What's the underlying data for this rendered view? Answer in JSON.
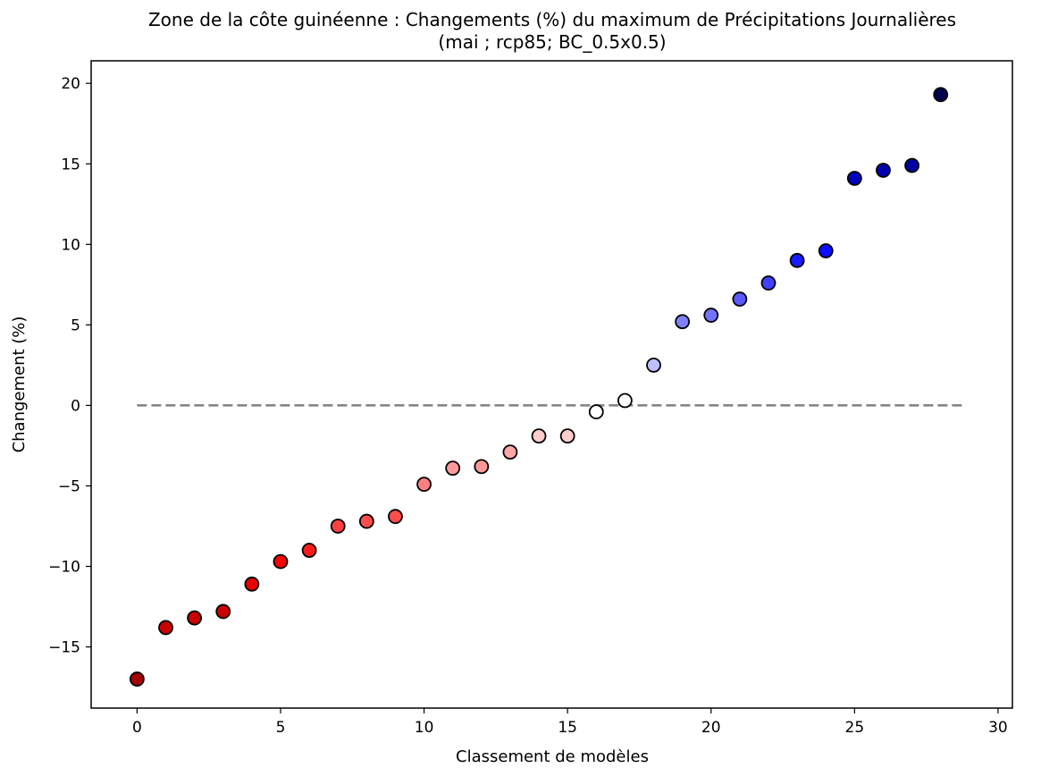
{
  "chart_data": {
    "type": "scatter",
    "title": "Zone de la côte guinéenne : Changements (%) du maximum de Précipitations Journalières",
    "subtitle": "(mai ; rcp85; BC_0.5x0.5)",
    "xlabel": "Classement de modèles",
    "ylabel": "Changement (%)",
    "xlim": [
      -1.6,
      30.5
    ],
    "ylim": [
      -18.8,
      21.4
    ],
    "xticks": [
      0,
      5,
      10,
      15,
      20,
      25,
      30
    ],
    "yticks": [
      -15,
      -10,
      -5,
      0,
      5,
      10,
      15,
      20
    ],
    "xtick_labels": [
      "0",
      "5",
      "10",
      "15",
      "20",
      "25",
      "30"
    ],
    "ytick_labels": [
      "−15",
      "−10",
      "−5",
      "0",
      "5",
      "10",
      "15",
      "20"
    ],
    "grid": false,
    "reference_line": {
      "y": 0,
      "x_range": [
        0,
        28.8
      ],
      "style": "dashed",
      "color": "#808080"
    },
    "points": [
      {
        "x": 0,
        "y": -17.0,
        "color": "#a50000"
      },
      {
        "x": 1,
        "y": -13.8,
        "color": "#cc0000"
      },
      {
        "x": 2,
        "y": -13.2,
        "color": "#cc0000"
      },
      {
        "x": 3,
        "y": -12.8,
        "color": "#cc0000"
      },
      {
        "x": 4,
        "y": -11.1,
        "color": "#e60000"
      },
      {
        "x": 5,
        "y": -9.7,
        "color": "#ff0000"
      },
      {
        "x": 6,
        "y": -9.0,
        "color": "#ff1a1a"
      },
      {
        "x": 7,
        "y": -7.5,
        "color": "#ff4040"
      },
      {
        "x": 8,
        "y": -7.2,
        "color": "#ff4d4d"
      },
      {
        "x": 9,
        "y": -6.9,
        "color": "#ff4d4d"
      },
      {
        "x": 10,
        "y": -4.9,
        "color": "#ff8080"
      },
      {
        "x": 11,
        "y": -3.9,
        "color": "#ff9999"
      },
      {
        "x": 12,
        "y": -3.8,
        "color": "#ff9999"
      },
      {
        "x": 13,
        "y": -2.9,
        "color": "#ffa6a6"
      },
      {
        "x": 14,
        "y": -1.9,
        "color": "#ffcccc"
      },
      {
        "x": 15,
        "y": -1.9,
        "color": "#ffcccc"
      },
      {
        "x": 16,
        "y": -0.4,
        "color": "#ffffff"
      },
      {
        "x": 17,
        "y": 0.3,
        "color": "#ffffff"
      },
      {
        "x": 18,
        "y": 2.5,
        "color": "#c0c0ff"
      },
      {
        "x": 19,
        "y": 5.2,
        "color": "#8080ff"
      },
      {
        "x": 20,
        "y": 5.6,
        "color": "#7373ff"
      },
      {
        "x": 21,
        "y": 6.6,
        "color": "#5959ff"
      },
      {
        "x": 22,
        "y": 7.6,
        "color": "#4040ff"
      },
      {
        "x": 23,
        "y": 9.0,
        "color": "#1a1aff"
      },
      {
        "x": 24,
        "y": 9.6,
        "color": "#0d0dff"
      },
      {
        "x": 25,
        "y": 14.1,
        "color": "#0000c0"
      },
      {
        "x": 26,
        "y": 14.6,
        "color": "#0000b0"
      },
      {
        "x": 27,
        "y": 14.9,
        "color": "#0000a0"
      },
      {
        "x": 28,
        "y": 19.3,
        "color": "#00004d"
      }
    ]
  }
}
